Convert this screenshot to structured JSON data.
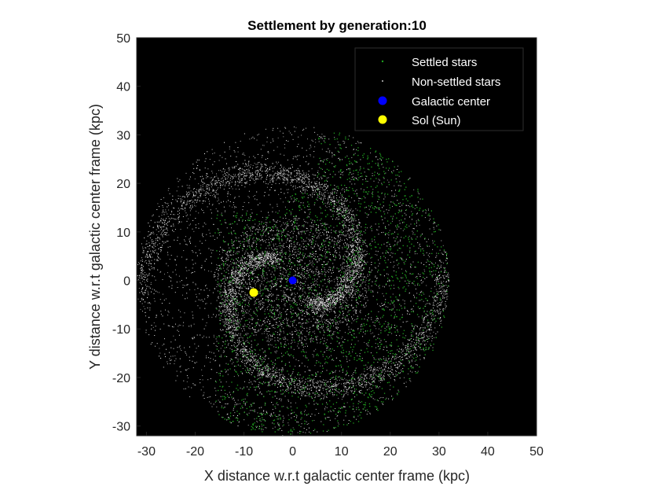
{
  "chart_data": {
    "type": "scatter",
    "title": "Settlement by generation:10",
    "xlabel": "X distance w.r.t galactic center frame (kpc)",
    "ylabel": "Y distance w.r.t galactic center frame (kpc)",
    "xlim": [
      -32,
      50
    ],
    "ylim": [
      -32,
      50
    ],
    "xticks": [
      -30,
      -20,
      -10,
      0,
      10,
      20,
      30,
      40,
      50
    ],
    "yticks": [
      -30,
      -20,
      -10,
      0,
      10,
      20,
      30,
      40,
      50
    ],
    "grid": false,
    "background": "#000000",
    "legend": {
      "placement": "top-right",
      "entries": [
        {
          "name": "Settled stars",
          "color": "#1fa01f",
          "marker": "dot-small"
        },
        {
          "name": "Non-settled stars",
          "color": "#ffffff",
          "marker": "dot-tiny"
        },
        {
          "name": "Galactic center",
          "color": "#0000ff",
          "marker": "dot-large"
        },
        {
          "name": "Sol (Sun)",
          "color": "#ffff00",
          "marker": "dot-large"
        }
      ]
    },
    "series": [
      {
        "name": "Settled stars",
        "color": "#1fa01f",
        "description_region": "disk region within radius 32 kpc, concentrated x > -15",
        "sample_count": 2600
      },
      {
        "name": "Non-settled stars",
        "color": "#ffffff",
        "description_region": "disk of radius ~32 kpc centered at origin with spiral arms",
        "sample_count": 9000
      },
      {
        "name": "Galactic center",
        "color": "#0000ff",
        "points": [
          [
            0,
            0
          ]
        ]
      },
      {
        "name": "Sol (Sun)",
        "color": "#ffff00",
        "points": [
          [
            -8,
            -2.5
          ]
        ]
      }
    ]
  }
}
